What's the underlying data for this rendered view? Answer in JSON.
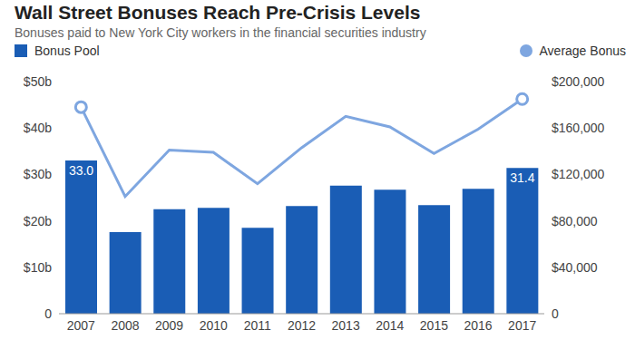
{
  "chart_data": {
    "type": "bar",
    "title": "Wall Street Bonuses Reach Pre-Crisis Levels",
    "subtitle": "Bonuses paid to New York City workers in the financial securities industry",
    "categories": [
      "2007",
      "2008",
      "2009",
      "2010",
      "2011",
      "2012",
      "2013",
      "2014",
      "2015",
      "2016",
      "2017"
    ],
    "series": [
      {
        "name": "Bonus Pool",
        "type": "bar",
        "color": "#1a5db5",
        "values": [
          33.0,
          17.6,
          22.5,
          22.8,
          18.5,
          23.2,
          27.6,
          26.7,
          23.4,
          26.9,
          31.4
        ],
        "value_labels": [
          "33.0",
          null,
          null,
          null,
          null,
          null,
          null,
          null,
          null,
          null,
          "31.4"
        ]
      },
      {
        "name": "Average Bonus",
        "type": "line",
        "axis": "y2",
        "color": "#7ea6e0",
        "marker": "circle",
        "values": [
          178000,
          101000,
          141000,
          139000,
          112000,
          143000,
          170000,
          161000,
          138000,
          159000,
          185000
        ]
      }
    ],
    "ylim": [
      0,
      50
    ],
    "yticks": [
      0,
      {
        "value": 10,
        "label": "$10b"
      },
      {
        "value": 20,
        "label": "$20b"
      },
      {
        "value": 30,
        "label": "$30b"
      },
      {
        "value": 40,
        "label": "$40b"
      },
      {
        "value": 50,
        "label": "$50b"
      }
    ],
    "y2lim": [
      0,
      200000
    ],
    "y2ticks": [
      0,
      {
        "value": 40000,
        "label": "$40,000"
      },
      {
        "value": 80000,
        "label": "$80,000"
      },
      {
        "value": 120000,
        "label": "$120,000"
      },
      {
        "value": 160000,
        "label": "$160,000"
      },
      {
        "value": 200000,
        "label": "$200,000"
      }
    ],
    "grid": false,
    "legend": "top",
    "data_labels": true
  }
}
